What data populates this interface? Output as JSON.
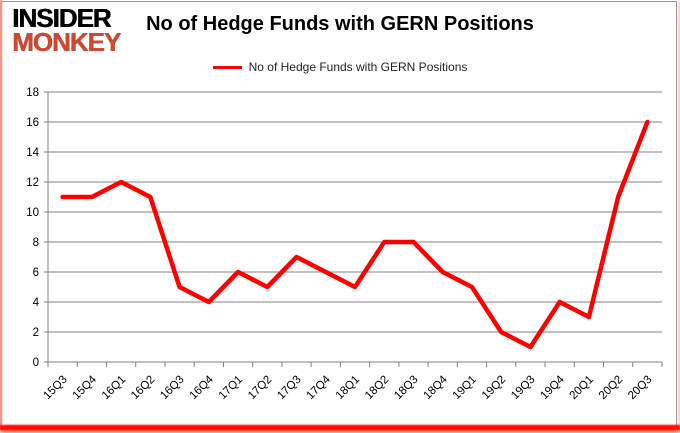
{
  "logo": {
    "line1": "INSIDER",
    "line2": "MONKEY",
    "line1_color": "#000000",
    "line2_color": "#c94b33"
  },
  "chart_data": {
    "type": "line",
    "title": "No of Hedge Funds with GERN Positions",
    "categories": [
      "15Q3",
      "15Q4",
      "16Q1",
      "16Q2",
      "16Q3",
      "16Q4",
      "17Q1",
      "17Q2",
      "17Q3",
      "17Q4",
      "18Q1",
      "18Q2",
      "18Q3",
      "18Q4",
      "19Q1",
      "19Q2",
      "19Q3",
      "19Q4",
      "20Q1",
      "20Q2",
      "20Q3"
    ],
    "series": [
      {
        "name": "No of Hedge Funds with GERN Positions",
        "color": "#ff0000",
        "values": [
          11,
          11,
          12,
          11,
          5,
          4,
          6,
          5,
          7,
          6,
          5,
          8,
          8,
          6,
          5,
          2,
          1,
          4,
          3,
          11,
          16
        ]
      }
    ],
    "xlabel": "",
    "ylabel": "",
    "ylim": [
      0,
      18
    ],
    "y_ticks": [
      0,
      2,
      4,
      6,
      8,
      10,
      12,
      14,
      16,
      18
    ],
    "grid": true,
    "gridline_color": "#808080",
    "axis_color": "#808080",
    "tick_label_color": "#000000",
    "legend_position": "top-center"
  }
}
